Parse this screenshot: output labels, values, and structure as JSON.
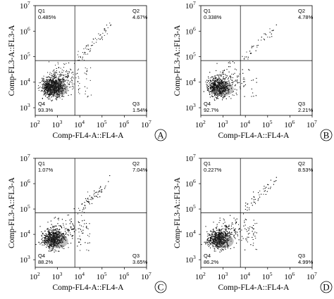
{
  "figure": {
    "panels": [
      {
        "letter": "A",
        "xlabel": "Comp-FL4-A::FL4-A",
        "ylabel": "Comp-FL3-A::FL3-A",
        "quadrants": {
          "Q1": "0.485%",
          "Q2": "4.67%",
          "Q3": "1.54%",
          "Q4": "93.3%"
        }
      },
      {
        "letter": "B",
        "xlabel": "Comp-FL4-A::FL4-A",
        "ylabel": "Comp-FL3-A::FL3-A",
        "quadrants": {
          "Q1": "0.338%",
          "Q2": "4.78%",
          "Q3": "2.21%",
          "Q4": "92.7%"
        }
      },
      {
        "letter": "C",
        "xlabel": "Comp-FL4-A::FL4-A",
        "ylabel": "Comp-FL3-A::FL3-A",
        "quadrants": {
          "Q1": "1.07%",
          "Q2": "7.04%",
          "Q3": "3.65%",
          "Q4": "88.2%"
        }
      },
      {
        "letter": "D",
        "xlabel": "Comp-FL4-A::FL4-A",
        "ylabel": "Comp-FL3-A::FL3-A",
        "quadrants": {
          "Q1": "0.227%",
          "Q2": "8.53%",
          "Q3": "4.99%",
          "Q4": "86.2%"
        }
      }
    ]
  },
  "chart_data": [
    {
      "type": "scatter",
      "panel": "A",
      "xlabel": "Comp-FL4-A::FL4-A",
      "ylabel": "Comp-FL3-A::FL3-A",
      "x_scale": "log",
      "y_scale": "log",
      "xlim": [
        100,
        10000000
      ],
      "ylim": [
        500,
        10000000
      ],
      "x_ticks": [
        100,
        1000,
        10000,
        100000,
        1000000,
        10000000
      ],
      "y_ticks": [
        1000,
        10000,
        100000,
        1000000,
        10000000
      ],
      "gate": {
        "x": 6000,
        "y": 70000
      },
      "quadrants": [
        {
          "name": "Q1",
          "percent": 0.485
        },
        {
          "name": "Q2",
          "percent": 4.67
        },
        {
          "name": "Q3",
          "percent": 1.54
        },
        {
          "name": "Q4",
          "percent": 93.3
        }
      ]
    },
    {
      "type": "scatter",
      "panel": "B",
      "xlabel": "Comp-FL4-A::FL4-A",
      "ylabel": "Comp-FL3-A::FL3-A",
      "x_scale": "log",
      "y_scale": "log",
      "xlim": [
        100,
        10000000
      ],
      "ylim": [
        500,
        10000000
      ],
      "x_ticks": [
        100,
        1000,
        10000,
        100000,
        1000000,
        10000000
      ],
      "y_ticks": [
        1000,
        10000,
        100000,
        1000000,
        10000000
      ],
      "gate": {
        "x": 6000,
        "y": 70000
      },
      "quadrants": [
        {
          "name": "Q1",
          "percent": 0.338
        },
        {
          "name": "Q2",
          "percent": 4.78
        },
        {
          "name": "Q3",
          "percent": 2.21
        },
        {
          "name": "Q4",
          "percent": 92.7
        }
      ]
    },
    {
      "type": "scatter",
      "panel": "C",
      "xlabel": "Comp-FL4-A::FL4-A",
      "ylabel": "Comp-FL3-A::FL3-A",
      "x_scale": "log",
      "y_scale": "log",
      "xlim": [
        100,
        10000000
      ],
      "ylim": [
        500,
        10000000
      ],
      "x_ticks": [
        100,
        1000,
        10000,
        100000,
        1000000,
        10000000
      ],
      "y_ticks": [
        1000,
        10000,
        100000,
        1000000,
        10000000
      ],
      "gate": {
        "x": 6000,
        "y": 70000
      },
      "quadrants": [
        {
          "name": "Q1",
          "percent": 1.07
        },
        {
          "name": "Q2",
          "percent": 7.04
        },
        {
          "name": "Q3",
          "percent": 3.65
        },
        {
          "name": "Q4",
          "percent": 88.2
        }
      ]
    },
    {
      "type": "scatter",
      "panel": "D",
      "xlabel": "Comp-FL4-A::FL4-A",
      "ylabel": "Comp-FL3-A::FL3-A",
      "x_scale": "log",
      "y_scale": "log",
      "xlim": [
        100,
        10000000
      ],
      "ylim": [
        500,
        10000000
      ],
      "x_ticks": [
        100,
        1000,
        10000,
        100000,
        1000000,
        10000000
      ],
      "y_ticks": [
        1000,
        10000,
        100000,
        1000000,
        10000000
      ],
      "gate": {
        "x": 6000,
        "y": 70000
      },
      "quadrants": [
        {
          "name": "Q1",
          "percent": 0.227
        },
        {
          "name": "Q2",
          "percent": 8.53
        },
        {
          "name": "Q3",
          "percent": 4.99
        },
        {
          "name": "Q4",
          "percent": 86.2
        }
      ]
    }
  ]
}
